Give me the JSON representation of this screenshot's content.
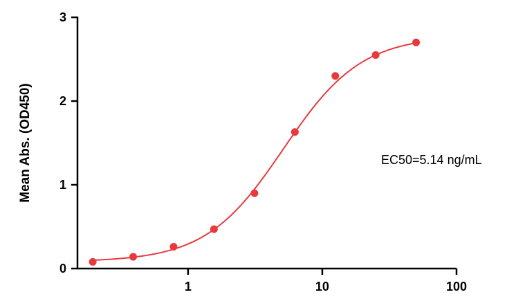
{
  "chart_data": {
    "type": "scatter",
    "x_scale": "log",
    "ylabel": "Mean Abs. (OD450)",
    "xlabel": "",
    "xlim": [
      0.15,
      100
    ],
    "ylim": [
      0,
      3
    ],
    "x_ticks": [
      1,
      10,
      100
    ],
    "x_tick_labels": [
      "1",
      "10",
      "100"
    ],
    "y_ticks": [
      0,
      1,
      2,
      3
    ],
    "y_tick_labels": [
      "0",
      "1",
      "2",
      "3"
    ],
    "grid": false,
    "annotation": "EC50=5.14 ng/mL",
    "colors": {
      "points": "#e8393d",
      "curve": "#e8393d",
      "axis": "#000000"
    },
    "series": [
      {
        "x": [
          0.195,
          0.39,
          0.78,
          1.56,
          3.125,
          6.25,
          12.5,
          25,
          50
        ],
        "y": [
          0.08,
          0.14,
          0.26,
          0.47,
          0.9,
          1.63,
          2.3,
          2.55,
          2.7
        ]
      }
    ],
    "fit": {
      "model": "4PL",
      "bottom": 0.08,
      "top": 2.78,
      "ec50": 5.14,
      "hill": 1.5
    }
  }
}
